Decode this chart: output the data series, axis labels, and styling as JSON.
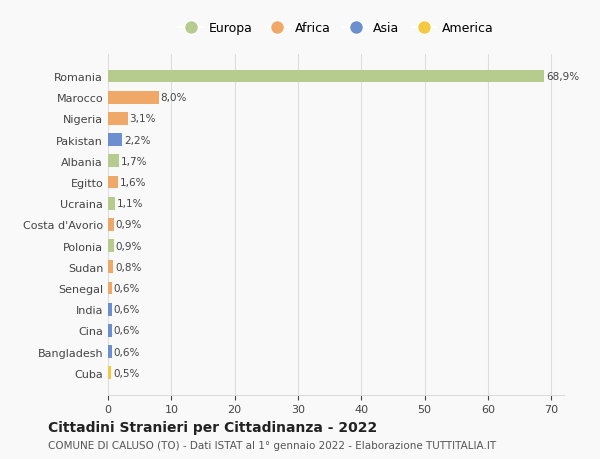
{
  "countries": [
    "Romania",
    "Marocco",
    "Nigeria",
    "Pakistan",
    "Albania",
    "Egitto",
    "Ucraina",
    "Costa d'Avorio",
    "Polonia",
    "Sudan",
    "Senegal",
    "India",
    "Cina",
    "Bangladesh",
    "Cuba"
  ],
  "values": [
    68.9,
    8.0,
    3.1,
    2.2,
    1.7,
    1.6,
    1.1,
    0.9,
    0.9,
    0.8,
    0.6,
    0.6,
    0.6,
    0.6,
    0.5
  ],
  "labels": [
    "68,9%",
    "8,0%",
    "3,1%",
    "2,2%",
    "1,7%",
    "1,6%",
    "1,1%",
    "0,9%",
    "0,9%",
    "0,8%",
    "0,6%",
    "0,6%",
    "0,6%",
    "0,6%",
    "0,5%"
  ],
  "colors": [
    "#b5cc8e",
    "#f0a868",
    "#f0a868",
    "#6b8fcf",
    "#b5cc8e",
    "#f0a868",
    "#b5cc8e",
    "#f0a868",
    "#b5cc8e",
    "#f0a868",
    "#f0a868",
    "#6b8fcf",
    "#6b8fcf",
    "#6b8fcf",
    "#f5c842"
  ],
  "legend_labels": [
    "Europa",
    "Africa",
    "Asia",
    "America"
  ],
  "legend_colors": [
    "#b5cc8e",
    "#f0a868",
    "#6b8fcf",
    "#f5c842"
  ],
  "title": "Cittadini Stranieri per Cittadinanza - 2022",
  "subtitle": "COMUNE DI CALUSO (TO) - Dati ISTAT al 1° gennaio 2022 - Elaborazione TUTTITALIA.IT",
  "xlim": [
    0,
    72
  ],
  "xticks": [
    0,
    10,
    20,
    30,
    40,
    50,
    60,
    70
  ],
  "bg_color": "#f9f9f9",
  "grid_color": "#dddddd"
}
